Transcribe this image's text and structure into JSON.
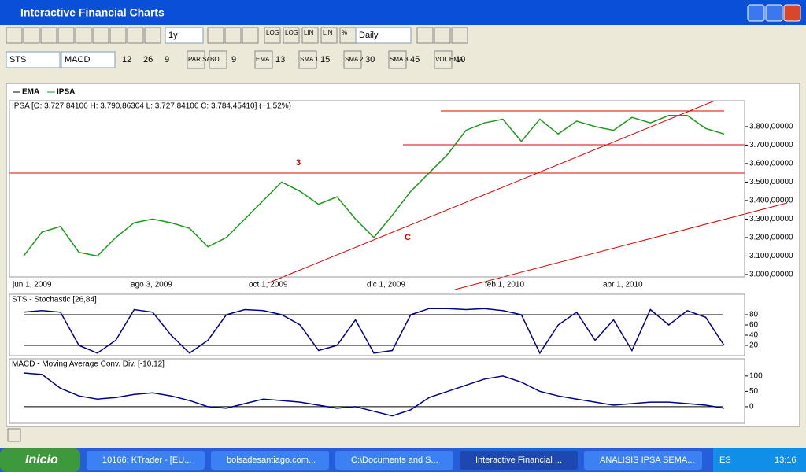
{
  "window": {
    "title": "Interactive Financial Charts"
  },
  "toolbar": {
    "period": "1y",
    "interval": "Daily",
    "scale_buttons": [
      "LOG",
      "LOG",
      "LIN",
      "LIN",
      "%"
    ]
  },
  "toolbar2": {
    "study1": "STS",
    "study2": "MACD",
    "macd_params": [
      12,
      26,
      9
    ],
    "par_sar": "PAR SAR",
    "bol": "BOL",
    "bol_n": 9,
    "ema": "EMA",
    "ema_n": 13,
    "sma": [
      {
        "label": "SMA 1",
        "n": 15
      },
      {
        "label": "SMA 2",
        "n": 30
      },
      {
        "label": "SMA 3",
        "n": 45
      }
    ],
    "vol": "VOL EMA",
    "vol_n": 10
  },
  "chart_data": [
    {
      "type": "line",
      "title": "IPSA [O: 3.727,84106  H: 3.790,86304  L: 3.727,84106  C: 3.784,45410] (+1,52%)",
      "legend": [
        "EMA",
        "IPSA"
      ],
      "xticks": [
        "jun 1, 2009",
        "ago 3, 2009",
        "oct 1, 2009",
        "dic 1, 2009",
        "feb 1, 2010",
        "abr 1, 2010"
      ],
      "annotations": [
        "3",
        "C"
      ],
      "series": [
        {
          "name": "IPSA",
          "color": "#1a9a1a",
          "values": [
            3100,
            3230,
            3260,
            3120,
            3100,
            3200,
            3280,
            3300,
            3280,
            3250,
            3150,
            3200,
            3300,
            3400,
            3500,
            3450,
            3380,
            3420,
            3300,
            3200,
            3320,
            3450,
            3550,
            3650,
            3780,
            3820,
            3840,
            3720,
            3840,
            3760,
            3830,
            3800,
            3780,
            3850,
            3820,
            3860,
            3860,
            3790,
            3760
          ]
        }
      ],
      "ylim": [
        2987,
        3940
      ],
      "yticks": [
        {
          "value": 3000,
          "label": "3.000,00000"
        },
        {
          "value": 3100,
          "label": "3.100,00000"
        },
        {
          "value": 3200,
          "label": "3.200,00000"
        },
        {
          "value": 3300,
          "label": "3.300,00000"
        },
        {
          "value": 3400,
          "label": "3.400,00000"
        },
        {
          "value": 3500,
          "label": "3.500,00000"
        },
        {
          "value": 3600,
          "label": "3.600,00000"
        },
        {
          "value": 3700,
          "label": "3.700,00000"
        },
        {
          "value": 3800,
          "label": "3.800,00000"
        }
      ]
    },
    {
      "type": "line",
      "title": "STS - Stochastic [26,84]",
      "series": [
        {
          "name": "STS",
          "color": "#00008b",
          "values": [
            85,
            88,
            85,
            20,
            5,
            30,
            90,
            85,
            40,
            5,
            30,
            80,
            90,
            88,
            80,
            60,
            10,
            20,
            70,
            5,
            10,
            80,
            92,
            92,
            90,
            92,
            88,
            80,
            5,
            60,
            85,
            30,
            70,
            10,
            90,
            60,
            88,
            75,
            20
          ]
        }
      ],
      "ylim": [
        0,
        120
      ],
      "yticks": [
        20,
        40,
        60,
        80
      ]
    },
    {
      "type": "line",
      "title": "MACD - Moving Average Conv. Div. [-10,12]",
      "series": [
        {
          "name": "MACD",
          "color": "#00008b",
          "values": [
            110,
            105,
            60,
            35,
            25,
            30,
            40,
            45,
            35,
            20,
            0,
            -5,
            10,
            25,
            20,
            15,
            5,
            -5,
            0,
            -15,
            -30,
            -10,
            30,
            50,
            70,
            90,
            100,
            80,
            50,
            35,
            25,
            15,
            5,
            10,
            15,
            15,
            10,
            5,
            -5
          ]
        }
      ],
      "ylim": [
        -54,
        156
      ],
      "yticks": [
        0,
        50,
        100
      ]
    }
  ],
  "taskbar": {
    "start": "Inicio",
    "items": [
      "10166: KTrader - [EU...",
      "bolsadesantiago.com...",
      "C:\\Documents and S...",
      "Interactive Financial ...",
      "ANALISIS IPSA SEMA..."
    ],
    "lang": "ES",
    "clock": "13:16"
  }
}
